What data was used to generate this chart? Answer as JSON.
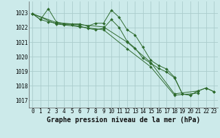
{
  "background_color": "#cceaea",
  "grid_color": "#aacccc",
  "line_color": "#2d6a2d",
  "marker_color": "#2d6a2d",
  "xlabel": "Graphe pression niveau de la mer (hPa)",
  "xlabel_fontsize": 7,
  "tick_fontsize": 5.5,
  "ylim": [
    1016.5,
    1023.8
  ],
  "xlim": [
    -0.5,
    23.5
  ],
  "yticks": [
    1017,
    1018,
    1019,
    1020,
    1021,
    1022,
    1023
  ],
  "xtick_labels": [
    "0",
    "1",
    "2",
    "3",
    "4",
    "5",
    "6",
    "7",
    "8",
    "9",
    "10",
    "11",
    "12",
    "13",
    "14",
    "15",
    "16",
    "17",
    "18",
    "19",
    "20",
    "21",
    "22",
    "23"
  ],
  "series": [
    {
      "x": [
        0,
        1,
        2,
        3,
        4,
        5,
        6,
        7,
        8,
        9,
        10,
        11,
        12,
        13,
        14,
        15,
        16,
        17,
        18,
        19,
        20,
        21,
        22,
        23
      ],
      "y": [
        1022.95,
        1022.55,
        1023.3,
        1022.4,
        1022.25,
        1022.25,
        1022.25,
        1022.1,
        1022.3,
        1022.3,
        1023.2,
        1022.7,
        1021.85,
        1021.5,
        1020.65,
        1019.75,
        1019.4,
        1019.15,
        1018.6,
        1017.45,
        1017.35,
        1017.65,
        1017.85,
        1017.6
      ]
    },
    {
      "x": [
        0,
        1,
        2,
        3,
        4,
        5,
        6,
        7,
        8,
        9,
        10,
        11,
        12,
        13,
        14,
        15,
        16,
        17,
        18,
        19,
        20,
        21,
        22,
        23
      ],
      "y": [
        1022.95,
        1022.55,
        1022.4,
        1022.3,
        1022.2,
        1022.2,
        1022.1,
        1021.95,
        1021.85,
        1021.95,
        1022.55,
        1022.0,
        1021.05,
        1020.6,
        1019.9,
        1019.55,
        1019.2,
        1018.95,
        1018.55,
        1017.45,
        1017.35,
        1017.65,
        1017.85,
        1017.6
      ]
    },
    {
      "x": [
        0,
        3,
        6,
        9,
        12,
        15,
        18,
        21
      ],
      "y": [
        1022.95,
        1022.35,
        1022.2,
        1022.05,
        1021.0,
        1019.6,
        1017.45,
        1017.65
      ]
    },
    {
      "x": [
        0,
        3,
        6,
        9,
        12,
        15,
        18,
        21
      ],
      "y": [
        1022.95,
        1022.25,
        1022.05,
        1021.85,
        1020.55,
        1019.3,
        1017.35,
        1017.5
      ]
    }
  ]
}
